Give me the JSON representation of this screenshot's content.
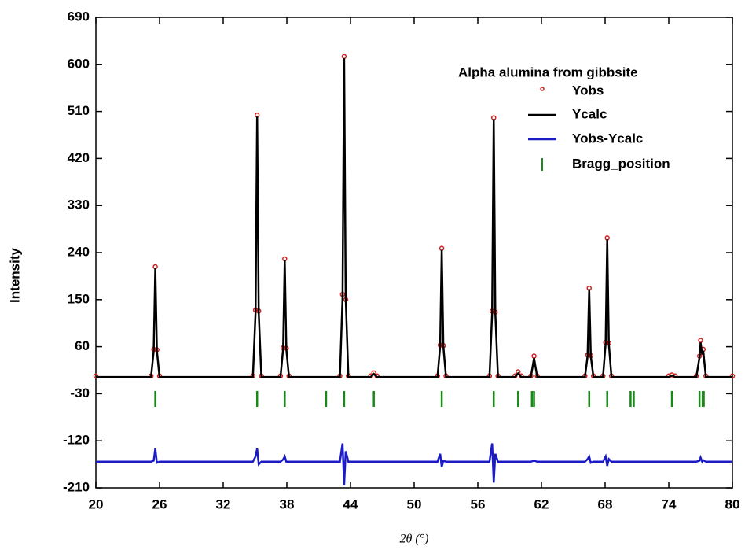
{
  "chart_data": {
    "type": "line",
    "x_label": "2θ (°)",
    "y_label": "Intensity",
    "legend_title": "Alpha alumina from gibbsite",
    "legend": "top right",
    "xlim": [
      20,
      80
    ],
    "ylim": [
      -210,
      690
    ],
    "xticks": [
      20,
      26,
      32,
      38,
      44,
      50,
      56,
      62,
      68,
      74,
      80
    ],
    "yticks": [
      -210,
      -120,
      -30,
      60,
      150,
      240,
      330,
      420,
      510,
      600,
      690
    ],
    "x": [
      20,
      25.2,
      25.45,
      25.6,
      25.75,
      26.0,
      34.8,
      35.05,
      35.2,
      35.35,
      35.6,
      37.4,
      37.65,
      37.8,
      37.95,
      38.2,
      43.0,
      43.25,
      43.4,
      43.55,
      43.8,
      45.9,
      46.2,
      46.5,
      52.2,
      52.45,
      52.6,
      52.75,
      53.0,
      57.1,
      57.35,
      57.5,
      57.65,
      57.9,
      59.5,
      59.8,
      60.1,
      61.0,
      61.3,
      61.6,
      66.1,
      66.35,
      66.5,
      66.65,
      66.9,
      67.8,
      68.05,
      68.2,
      68.35,
      68.6,
      74.0,
      74.3,
      74.6,
      76.6,
      76.9,
      77.0,
      77.15,
      77.25,
      77.5,
      80
    ],
    "series": [
      {
        "name": "Yobs",
        "color": "#d42020",
        "marker": "dot",
        "values": [
          4,
          4,
          55,
          213,
          54,
          4,
          4,
          130,
          503,
          128,
          4,
          4,
          58,
          228,
          57,
          4,
          4,
          160,
          615,
          150,
          4,
          4,
          10,
          4,
          4,
          63,
          248,
          62,
          4,
          4,
          128,
          498,
          126,
          4,
          4,
          12,
          4,
          4,
          42,
          4,
          4,
          44,
          172,
          43,
          4,
          4,
          68,
          268,
          67,
          4,
          4,
          6,
          4,
          4,
          42,
          72,
          46,
          55,
          4,
          4
        ]
      },
      {
        "name": "Ycalc",
        "color": "#000000",
        "values": [
          2,
          2,
          52,
          210,
          52,
          2,
          2,
          125,
          500,
          125,
          2,
          2,
          56,
          225,
          56,
          2,
          2,
          153,
          612,
          153,
          2,
          2,
          8,
          2,
          2,
          61,
          245,
          61,
          2,
          2,
          124,
          495,
          124,
          2,
          2,
          9,
          2,
          2,
          38,
          2,
          2,
          42,
          170,
          42,
          2,
          2,
          66,
          265,
          66,
          2,
          2,
          5,
          2,
          2,
          40,
          68,
          45,
          52,
          2,
          2
        ]
      },
      {
        "name": "Yobs-Ycalc",
        "color": "#1c1cc4",
        "values": [
          -160,
          -160,
          -158,
          -135,
          -162,
          -160,
          -160,
          -150,
          -135,
          -165,
          -160,
          -160,
          -156,
          -150,
          -160,
          -160,
          -160,
          -125,
          -205,
          -140,
          -160,
          -160,
          -160,
          -160,
          -160,
          -145,
          -170,
          -158,
          -160,
          -160,
          -125,
          -200,
          -145,
          -160,
          -160,
          -160,
          -160,
          -160,
          -158,
          -160,
          -160,
          -155,
          -150,
          -162,
          -160,
          -160,
          -150,
          -168,
          -155,
          -160,
          -160,
          -160,
          -160,
          -160,
          -158,
          -152,
          -160,
          -157,
          -160,
          -160
        ]
      }
    ],
    "reflections": {
      "name": "Bragg_position",
      "color": "#178a17",
      "x": [
        25.6,
        35.2,
        37.8,
        41.7,
        43.4,
        46.2,
        52.6,
        57.5,
        59.8,
        61.1,
        61.3,
        66.5,
        68.2,
        70.4,
        70.7,
        74.3,
        76.9,
        77.2,
        77.3
      ]
    }
  }
}
